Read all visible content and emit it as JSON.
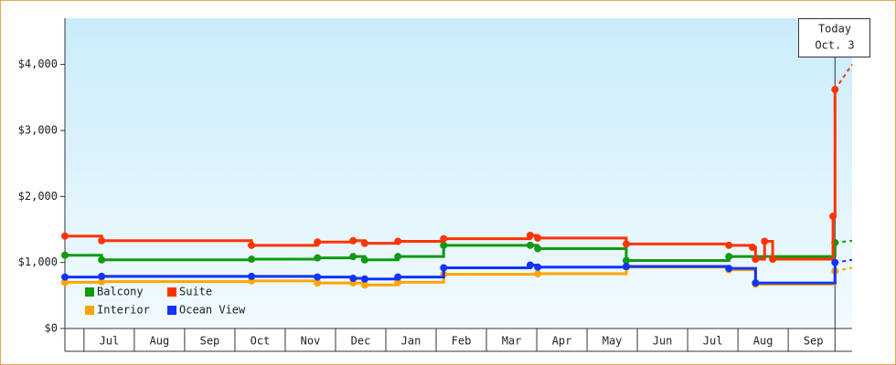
{
  "chart_data": {
    "type": "step-line",
    "xlim": [
      0.62,
      16.27
    ],
    "xticks": [
      {
        "value": 1.5,
        "label": "Jul"
      },
      {
        "value": 2.5,
        "label": "Aug"
      },
      {
        "value": 3.5,
        "label": "Sep"
      },
      {
        "value": 4.5,
        "label": "Oct"
      },
      {
        "value": 5.5,
        "label": "Nov"
      },
      {
        "value": 6.5,
        "label": "Dec"
      },
      {
        "value": 7.5,
        "label": "Jan"
      },
      {
        "value": 8.5,
        "label": "Feb"
      },
      {
        "value": 9.5,
        "label": "Mar"
      },
      {
        "value": 10.5,
        "label": "Apr"
      },
      {
        "value": 11.5,
        "label": "May"
      },
      {
        "value": 12.5,
        "label": "Jun"
      },
      {
        "value": 13.5,
        "label": "Jul"
      },
      {
        "value": 14.5,
        "label": "Aug"
      },
      {
        "value": 15.5,
        "label": "Sep"
      }
    ],
    "ylim": [
      0,
      4700
    ],
    "yticks": [
      {
        "value": 0,
        "label": "$0"
      },
      {
        "value": 1000,
        "label": "$1,000"
      },
      {
        "value": 2000,
        "label": "$2,000"
      },
      {
        "value": 3000,
        "label": "$3,000"
      },
      {
        "value": 4000,
        "label": "$4,000"
      }
    ],
    "legend": "lower left",
    "annotation": {
      "x": 15.93,
      "lines": [
        "Today",
        "Oct. 3"
      ]
    },
    "forecast_x": [
      15.93,
      16.27
    ],
    "series": [
      {
        "name": "Balcony",
        "color": "#119911",
        "x": [
          0.62,
          1.35,
          4.33,
          5.64,
          6.35,
          6.58,
          7.24,
          8.15,
          9.87,
          10.02,
          11.78,
          13.82,
          15.93
        ],
        "values": [
          1110,
          1040,
          1050,
          1070,
          1090,
          1040,
          1090,
          1260,
          1260,
          1210,
          1030,
          1090,
          1300
        ],
        "forecast_values": [
          1300,
          1330
        ]
      },
      {
        "name": "Suite",
        "color": "#ff3300",
        "x": [
          0.62,
          1.35,
          4.33,
          5.64,
          6.35,
          6.58,
          7.24,
          8.15,
          9.87,
          10.02,
          11.78,
          13.82,
          14.29,
          14.35,
          14.53,
          14.69,
          15.89,
          15.93
        ],
        "values": [
          1400,
          1330,
          1260,
          1310,
          1330,
          1290,
          1320,
          1360,
          1410,
          1370,
          1280,
          1260,
          1230,
          1050,
          1320,
          1050,
          1700,
          3620
        ],
        "forecast_values": [
          3620,
          4000
        ]
      },
      {
        "name": "Interior",
        "color": "#ffa500",
        "x": [
          0.62,
          1.35,
          4.33,
          5.64,
          6.35,
          6.58,
          7.24,
          8.15,
          10.02,
          11.78,
          13.82,
          14.35,
          15.93
        ],
        "values": [
          700,
          710,
          720,
          690,
          690,
          660,
          700,
          820,
          830,
          930,
          890,
          670,
          870
        ],
        "forecast_values": [
          870,
          920
        ]
      },
      {
        "name": "Ocean View",
        "color": "#1133ff",
        "x": [
          0.62,
          1.35,
          4.33,
          5.64,
          6.35,
          6.58,
          7.24,
          8.15,
          9.87,
          10.02,
          11.78,
          13.82,
          14.35,
          15.93
        ],
        "values": [
          780,
          790,
          790,
          780,
          760,
          750,
          780,
          920,
          960,
          930,
          940,
          910,
          690,
          1000
        ],
        "forecast_values": [
          1000,
          1040
        ]
      }
    ]
  }
}
